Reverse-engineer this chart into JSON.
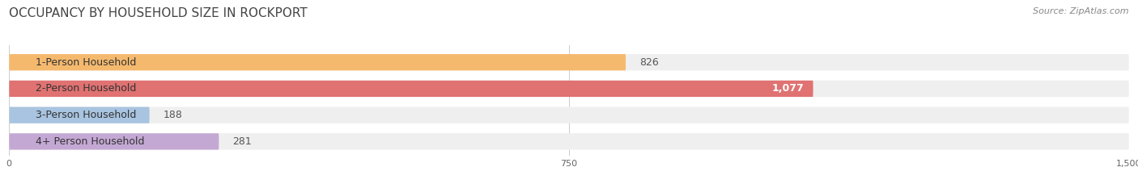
{
  "title": "OCCUPANCY BY HOUSEHOLD SIZE IN ROCKPORT",
  "source": "Source: ZipAtlas.com",
  "categories": [
    "1-Person Household",
    "2-Person Household",
    "3-Person Household",
    "4+ Person Household"
  ],
  "values": [
    826,
    1077,
    188,
    281
  ],
  "bar_colors": [
    "#F5B96E",
    "#E07272",
    "#A8C4E0",
    "#C4A8D4"
  ],
  "row_bg_color": "#EFEFEF",
  "title_color": "#444444",
  "source_color": "#888888",
  "label_color": "#333333",
  "value_color_inside": "#ffffff",
  "value_color_outside": "#555555",
  "xlim": [
    0,
    1500
  ],
  "xticks": [
    0,
    750,
    1500
  ],
  "title_fontsize": 11,
  "source_fontsize": 8,
  "label_fontsize": 9,
  "value_fontsize": 9,
  "fig_bg": "#ffffff"
}
